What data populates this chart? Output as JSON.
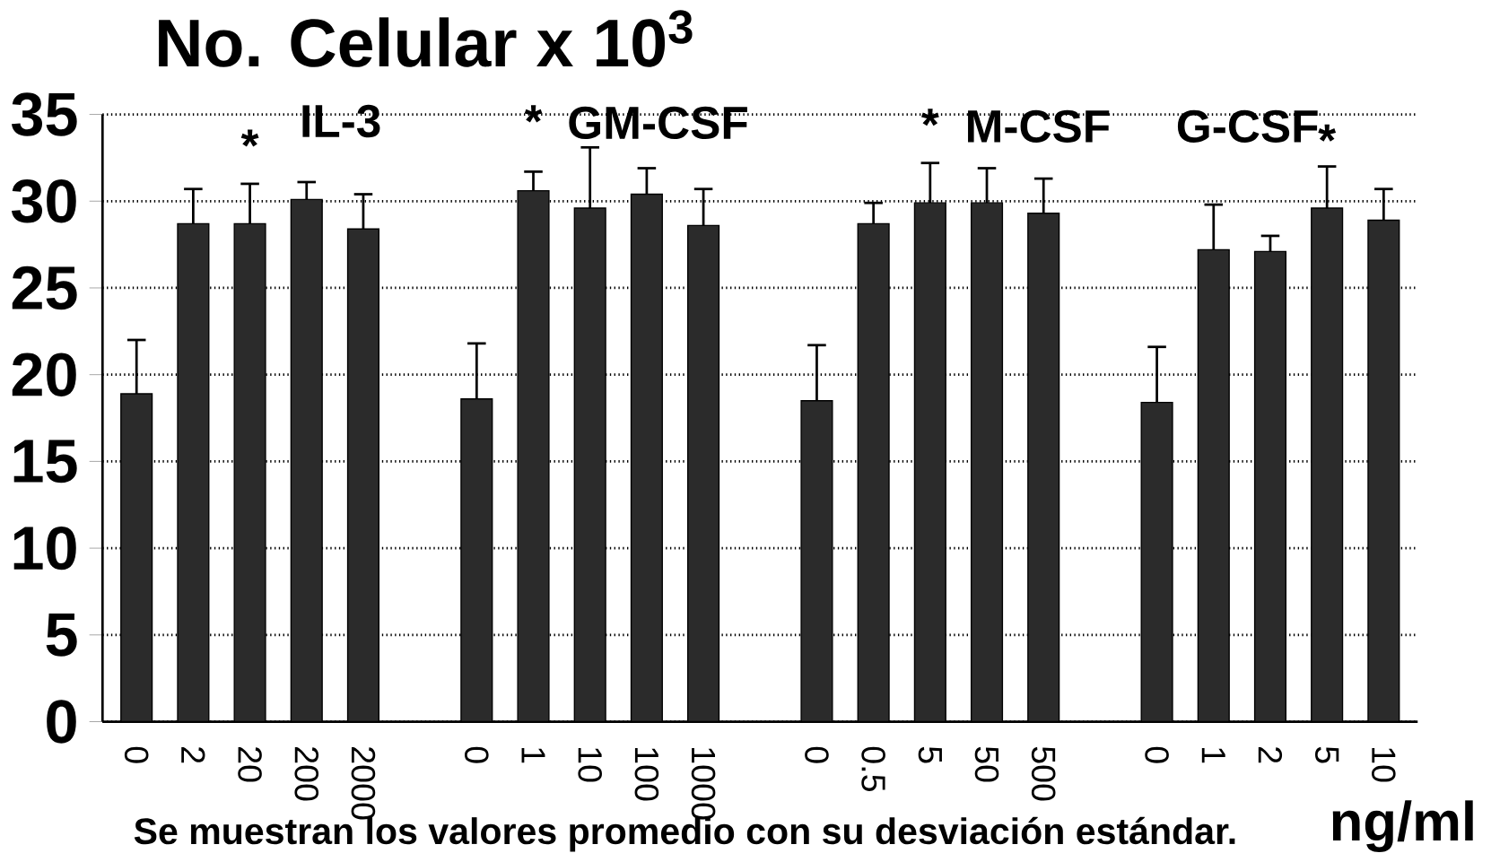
{
  "chart_data": {
    "type": "bar",
    "ylabel": "No. Celular x 10$^{3}$",
    "xlabel": "ng/ml",
    "categories": [
      "0",
      "2",
      "20",
      "200",
      "2000",
      null,
      "0",
      "1",
      "10",
      "100",
      "1000",
      null,
      "0",
      "0.5",
      "5",
      "50",
      "500",
      null,
      "0",
      "1",
      "2",
      "5",
      "10"
    ],
    "values": [
      18.9,
      28.7,
      28.7,
      30.1,
      28.4,
      null,
      18.6,
      30.6,
      29.6,
      30.4,
      28.6,
      null,
      18.5,
      28.7,
      29.9,
      29.9,
      29.3,
      null,
      18.4,
      27.2,
      27.1,
      29.6,
      28.9
    ],
    "errors": [
      3.1,
      2.0,
      2.3,
      1.0,
      2.0,
      null,
      3.2,
      1.1,
      3.5,
      1.5,
      2.1,
      null,
      3.2,
      1.2,
      2.3,
      2.0,
      2.0,
      null,
      3.2,
      2.6,
      0.9,
      2.4,
      1.8
    ],
    "color": "#2b2b2b",
    "ylim": [
      0,
      35
    ],
    "yticks": [
      0,
      5,
      10,
      15,
      20,
      25,
      30,
      35
    ],
    "grid": "y",
    "annotations": [
      "IL-3",
      "GM-CSF",
      "M-CSF",
      "G-CSF",
      "*",
      "*",
      "*",
      "*",
      "Se muestran los valores promedio con su desviación estándar."
    ]
  }
}
